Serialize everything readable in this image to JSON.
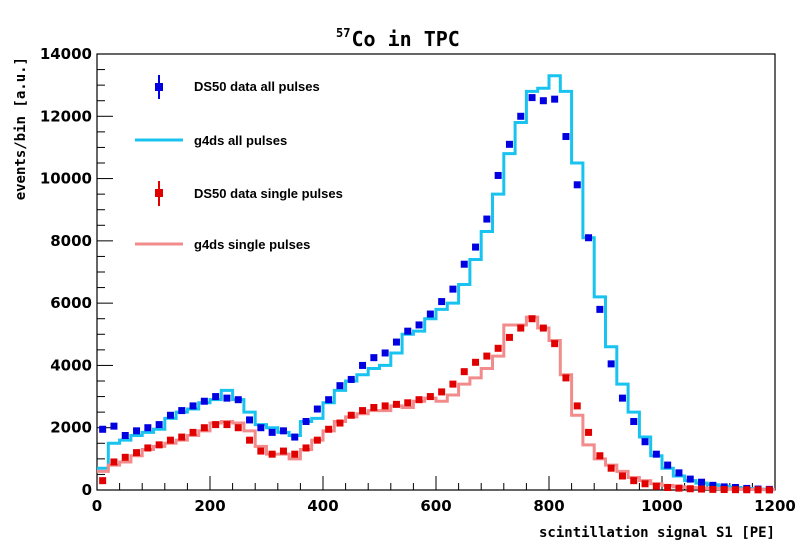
{
  "chart_data": {
    "type": "line",
    "title": {
      "isotope_mass": "57",
      "text": "Co in TPC"
    },
    "xlabel": "scintillation signal S1 [PE]",
    "ylabel": "events/bin [a.u.]",
    "xlim": [
      0,
      1200
    ],
    "ylim": [
      0,
      14000
    ],
    "x_ticks": [
      0,
      200,
      400,
      600,
      800,
      1000,
      1200
    ],
    "y_ticks": [
      0,
      2000,
      4000,
      6000,
      8000,
      10000,
      12000,
      14000
    ],
    "grid": false,
    "legend_position": "top-left",
    "bin_edges": [
      0,
      20,
      40,
      60,
      80,
      100,
      120,
      140,
      160,
      180,
      200,
      220,
      240,
      260,
      280,
      300,
      320,
      340,
      360,
      380,
      400,
      420,
      440,
      460,
      480,
      500,
      520,
      540,
      560,
      580,
      600,
      620,
      640,
      660,
      680,
      700,
      720,
      740,
      760,
      780,
      800,
      820,
      840,
      860,
      880,
      900,
      920,
      940,
      960,
      980,
      1000,
      1020,
      1040,
      1060,
      1080,
      1100,
      1120,
      1140,
      1160,
      1180,
      1200
    ],
    "series": [
      {
        "name": "DS50 data all pulses",
        "kind": "markers",
        "color": "#0000e0",
        "x": [
          10,
          30,
          50,
          70,
          90,
          110,
          130,
          150,
          170,
          190,
          210,
          230,
          250,
          270,
          290,
          310,
          330,
          350,
          370,
          390,
          410,
          430,
          450,
          470,
          490,
          510,
          530,
          550,
          570,
          590,
          610,
          630,
          650,
          670,
          690,
          710,
          730,
          750,
          770,
          790,
          810,
          830,
          850,
          870,
          890,
          910,
          930,
          950,
          970,
          990,
          1010,
          1030,
          1050,
          1070,
          1090,
          1110,
          1130,
          1150,
          1170,
          1190
        ],
        "values": [
          1950,
          2050,
          1750,
          1900,
          2000,
          2100,
          2400,
          2550,
          2700,
          2850,
          3000,
          2950,
          2900,
          2250,
          2000,
          1850,
          1900,
          1700,
          2200,
          2600,
          2900,
          3350,
          3550,
          4000,
          4250,
          4400,
          4750,
          5100,
          5300,
          5650,
          6050,
          6450,
          7250,
          7800,
          8700,
          10100,
          11100,
          12000,
          12600,
          12500,
          12550,
          11350,
          9800,
          8100,
          5800,
          4050,
          2950,
          2200,
          1550,
          1150,
          800,
          550,
          350,
          250,
          150,
          100,
          80,
          50,
          30,
          20
        ]
      },
      {
        "name": "g4ds all pulses",
        "kind": "step",
        "color": "#19c3ef",
        "x": [
          10,
          30,
          50,
          70,
          90,
          110,
          130,
          150,
          170,
          190,
          210,
          230,
          250,
          270,
          290,
          310,
          330,
          350,
          370,
          390,
          410,
          430,
          450,
          470,
          490,
          510,
          530,
          550,
          570,
          590,
          610,
          630,
          650,
          670,
          690,
          710,
          730,
          750,
          770,
          790,
          810,
          830,
          850,
          870,
          890,
          910,
          930,
          950,
          970,
          990,
          1010,
          1030,
          1050,
          1070,
          1090,
          1110,
          1130,
          1150,
          1170,
          1190
        ],
        "values": [
          700,
          1500,
          1600,
          1750,
          1850,
          1950,
          2300,
          2500,
          2600,
          2800,
          2900,
          3200,
          2900,
          2500,
          2100,
          2000,
          1850,
          1750,
          2200,
          2300,
          2800,
          3200,
          3500,
          3700,
          3900,
          4000,
          4400,
          5000,
          5100,
          5500,
          5800,
          6000,
          6600,
          7400,
          8300,
          9500,
          10800,
          11800,
          12800,
          12900,
          13300,
          12800,
          10500,
          8100,
          6200,
          4600,
          3400,
          2500,
          1700,
          1100,
          700,
          450,
          300,
          220,
          170,
          120,
          80,
          50,
          30,
          20
        ]
      },
      {
        "name": "DS50 data single pulses",
        "kind": "markers",
        "color": "#e00000",
        "x": [
          10,
          30,
          50,
          70,
          90,
          110,
          130,
          150,
          170,
          190,
          210,
          230,
          250,
          270,
          290,
          310,
          330,
          350,
          370,
          390,
          410,
          430,
          450,
          470,
          490,
          510,
          530,
          550,
          570,
          590,
          610,
          630,
          650,
          670,
          690,
          710,
          730,
          750,
          770,
          790,
          810,
          830,
          850,
          870,
          890,
          910,
          930,
          950,
          970,
          990,
          1010,
          1030,
          1050,
          1070,
          1090,
          1110,
          1130,
          1150,
          1170,
          1190
        ],
        "values": [
          300,
          900,
          1050,
          1200,
          1350,
          1450,
          1600,
          1700,
          1850,
          2000,
          2100,
          2100,
          2000,
          1600,
          1250,
          1150,
          1250,
          1150,
          1350,
          1600,
          1950,
          2150,
          2400,
          2550,
          2650,
          2700,
          2750,
          2800,
          2900,
          3000,
          3150,
          3400,
          3800,
          4100,
          4300,
          4550,
          4900,
          5200,
          5500,
          5200,
          4700,
          3600,
          2700,
          1850,
          1100,
          700,
          450,
          300,
          200,
          120,
          80,
          60,
          40,
          30,
          20,
          15,
          10,
          8,
          5,
          3
        ]
      },
      {
        "name": "g4ds single pulses",
        "kind": "step",
        "color": "#f28c8c",
        "x": [
          10,
          30,
          50,
          70,
          90,
          110,
          130,
          150,
          170,
          190,
          210,
          230,
          250,
          270,
          290,
          310,
          330,
          350,
          370,
          390,
          410,
          430,
          450,
          470,
          490,
          510,
          530,
          550,
          570,
          590,
          610,
          630,
          650,
          670,
          690,
          710,
          730,
          750,
          770,
          790,
          810,
          830,
          850,
          870,
          890,
          910,
          930,
          950,
          970,
          990,
          1010,
          1030,
          1050,
          1070,
          1090,
          1110,
          1130,
          1150,
          1170,
          1190
        ],
        "values": [
          600,
          800,
          900,
          1100,
          1300,
          1400,
          1500,
          1600,
          1750,
          1900,
          2150,
          2200,
          2150,
          1900,
          1400,
          1150,
          1150,
          1000,
          1300,
          1600,
          1900,
          2200,
          2350,
          2450,
          2550,
          2550,
          2700,
          2650,
          2850,
          2950,
          2850,
          3050,
          3400,
          3600,
          3900,
          4300,
          5300,
          5300,
          5550,
          5200,
          4800,
          3700,
          2400,
          1450,
          1000,
          800,
          600,
          400,
          300,
          200,
          150,
          100,
          80,
          60,
          50,
          40,
          30,
          20,
          15,
          10
        ]
      }
    ]
  }
}
